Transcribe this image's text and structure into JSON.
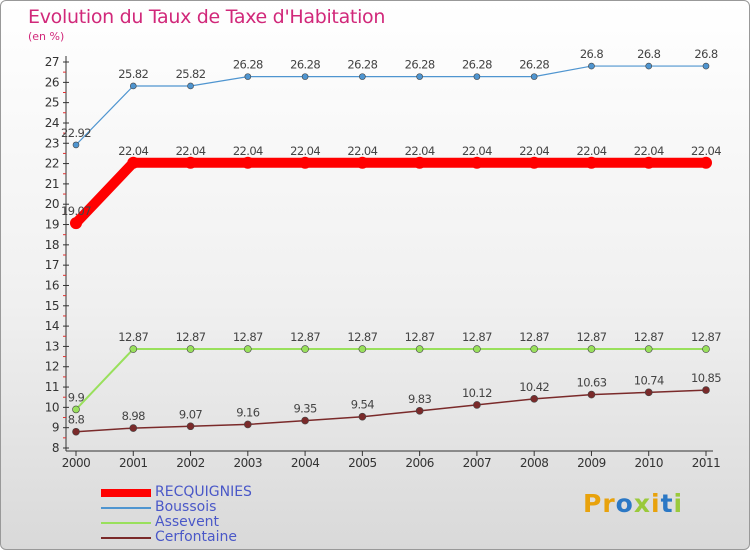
{
  "title": "Evolution du Taux de Taxe d'Habitation",
  "subtitle": "(en %)",
  "logo_text": "Proxiti",
  "colors": {
    "title": "#d1287a",
    "legend_text": "#4a58c8"
  },
  "chart_data": {
    "type": "line",
    "title": "Evolution du Taux de Taxe d'Habitation",
    "ylabel": "(en %)",
    "xlabel": "",
    "x": [
      "2000",
      "2001",
      "2002",
      "2003",
      "2004",
      "2005",
      "2006",
      "2007",
      "2008",
      "2009",
      "2010",
      "2011"
    ],
    "ylim": [
      8,
      27
    ],
    "yticks": [
      8,
      9,
      10,
      11,
      12,
      13,
      14,
      15,
      16,
      17,
      18,
      19,
      20,
      21,
      22,
      23,
      24,
      25,
      26,
      27
    ],
    "grid": false,
    "legend_position": "bottom-left",
    "series": [
      {
        "name": "RECQUIGNIES",
        "color": "#ff0000",
        "values": [
          19.07,
          22.04,
          22.04,
          22.04,
          22.04,
          22.04,
          22.04,
          22.04,
          22.04,
          22.04,
          22.04,
          22.04
        ],
        "labels": [
          "19.07",
          "22.04",
          "22.04",
          "22.04",
          "22.04",
          "22.04",
          "22.04",
          "22.04",
          "22.04",
          "22.04",
          "22.04",
          "22.04"
        ]
      },
      {
        "name": "Boussois",
        "color": "#4f95d0",
        "values": [
          22.92,
          25.82,
          25.82,
          26.28,
          26.28,
          26.28,
          26.28,
          26.28,
          26.28,
          26.8,
          26.8,
          26.8
        ],
        "labels": [
          "22.92",
          "25.82",
          "25.82",
          "26.28",
          "26.28",
          "26.28",
          "26.28",
          "26.28",
          "26.28",
          "26.8",
          "26.8",
          "26.8"
        ]
      },
      {
        "name": "Assevent",
        "color": "#99e05c",
        "values": [
          9.9,
          12.87,
          12.87,
          12.87,
          12.87,
          12.87,
          12.87,
          12.87,
          12.87,
          12.87,
          12.87,
          12.87
        ],
        "labels": [
          "9.9",
          "12.87",
          "12.87",
          "12.87",
          "12.87",
          "12.87",
          "12.87",
          "12.87",
          "12.87",
          "12.87",
          "12.87",
          "12.87"
        ]
      },
      {
        "name": "Cerfontaine",
        "color": "#7a2a2a",
        "values": [
          8.8,
          8.98,
          9.07,
          9.16,
          9.35,
          9.54,
          9.83,
          10.12,
          10.42,
          10.63,
          10.74,
          10.85
        ],
        "labels": [
          "8.8",
          "8.98",
          "9.07",
          "9.16",
          "9.35",
          "9.54",
          "9.83",
          "10.12",
          "10.42",
          "10.63",
          "10.74",
          "10.85"
        ]
      }
    ]
  }
}
